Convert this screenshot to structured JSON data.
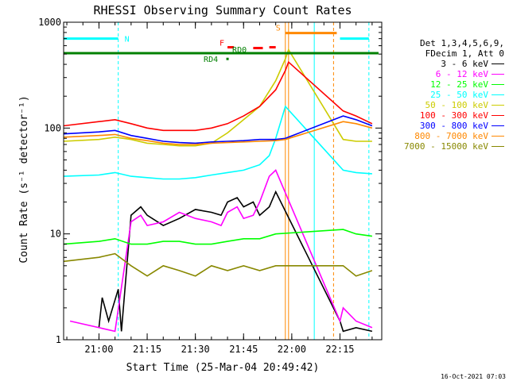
{
  "chart_data": {
    "type": "line",
    "title": "RHESSI Observing Summary Count Rates",
    "xlabel": "Start Time (25-Mar-04 20:49:42)",
    "ylabel": "Count Rate (s⁻¹ detector⁻¹)",
    "yscale": "log",
    "xlim": [
      "20:49",
      "22:28"
    ],
    "ylim": [
      1,
      1000
    ],
    "x_ticks": [
      "21:00",
      "21:15",
      "21:30",
      "21:45",
      "22:00",
      "22:15"
    ],
    "y_ticks": [
      "1",
      "10",
      "100",
      "1000"
    ],
    "legend_header": [
      "Det 1,3,4,5,6,9,",
      "FDecim 1, Att 0"
    ],
    "series": [
      {
        "name": "3 - 6 keV",
        "color": "#000000",
        "x": [
          "21:00",
          "21:01",
          "21:03",
          "21:06",
          "21:07",
          "21:10",
          "21:13",
          "21:15",
          "21:20",
          "21:25",
          "21:30",
          "21:35",
          "21:38",
          "21:40",
          "21:43",
          "21:45",
          "21:48",
          "21:50",
          "21:53",
          "21:55",
          "22:15",
          "22:16",
          "22:20",
          "22:25"
        ],
        "y": [
          1.3,
          2.5,
          1.5,
          3,
          1.2,
          15,
          18,
          15,
          12,
          14,
          17,
          16,
          15,
          20,
          22,
          18,
          20,
          15,
          18,
          25,
          1.5,
          1.2,
          1.3,
          1.2
        ]
      },
      {
        "name": "6 - 12 keV",
        "color": "#ff00ff",
        "x": [
          "20:51",
          "21:05",
          "21:10",
          "21:13",
          "21:15",
          "21:20",
          "21:25",
          "21:30",
          "21:35",
          "21:38",
          "21:40",
          "21:43",
          "21:45",
          "21:48",
          "21:50",
          "21:53",
          "21:55",
          "22:15",
          "22:16",
          "22:20",
          "22:25"
        ],
        "y": [
          1.5,
          1.2,
          13,
          15,
          12,
          13,
          16,
          14,
          13,
          12,
          16,
          18,
          14,
          15,
          20,
          35,
          40,
          1.5,
          2,
          1.5,
          1.3
        ]
      },
      {
        "name": "12 - 25 keV",
        "color": "#00ff00",
        "x": [
          "20:49",
          "21:00",
          "21:05",
          "21:10",
          "21:15",
          "21:20",
          "21:25",
          "21:30",
          "21:35",
          "21:40",
          "21:45",
          "21:50",
          "21:55",
          "22:16",
          "22:20",
          "22:25"
        ],
        "y": [
          8,
          8.5,
          9,
          8,
          8,
          8.5,
          8.5,
          8,
          8,
          8.5,
          9,
          9,
          10,
          11,
          10,
          9.5
        ]
      },
      {
        "name": "25 - 50 keV",
        "color": "#00ffff",
        "x": [
          "20:49",
          "21:00",
          "21:05",
          "21:10",
          "21:15",
          "21:20",
          "21:25",
          "21:30",
          "21:35",
          "21:40",
          "21:45",
          "21:50",
          "21:53",
          "21:55",
          "21:58",
          "22:16",
          "22:20",
          "22:25"
        ],
        "y": [
          35,
          36,
          38,
          35,
          34,
          33,
          33,
          34,
          36,
          38,
          40,
          45,
          55,
          80,
          160,
          40,
          38,
          37
        ]
      },
      {
        "name": "50 - 100 keV",
        "color": "#cccc00",
        "x": [
          "20:49",
          "21:00",
          "21:05",
          "21:10",
          "21:15",
          "21:20",
          "21:25",
          "21:30",
          "21:35",
          "21:40",
          "21:45",
          "21:50",
          "21:55",
          "21:58",
          "21:59",
          "22:16",
          "22:20",
          "22:25"
        ],
        "y": [
          75,
          78,
          82,
          78,
          72,
          70,
          68,
          68,
          72,
          90,
          120,
          160,
          280,
          450,
          550,
          78,
          75,
          75
        ]
      },
      {
        "name": "100 - 300 keV",
        "color": "#ff0000",
        "x": [
          "20:49",
          "21:00",
          "21:05",
          "21:10",
          "21:15",
          "21:20",
          "21:25",
          "21:30",
          "21:35",
          "21:40",
          "21:45",
          "21:50",
          "21:55",
          "21:58",
          "21:59",
          "22:16",
          "22:20",
          "22:25"
        ],
        "y": [
          105,
          115,
          120,
          110,
          100,
          95,
          95,
          95,
          100,
          110,
          130,
          160,
          230,
          350,
          420,
          145,
          130,
          110
        ]
      },
      {
        "name": "300 - 800 keV",
        "color": "#0000ff",
        "x": [
          "20:49",
          "21:00",
          "21:05",
          "21:10",
          "21:15",
          "21:20",
          "21:25",
          "21:30",
          "21:35",
          "21:40",
          "21:45",
          "21:50",
          "21:55",
          "21:58",
          "22:16",
          "22:20",
          "22:25"
        ],
        "y": [
          88,
          92,
          95,
          85,
          80,
          75,
          73,
          72,
          74,
          75,
          76,
          78,
          78,
          80,
          130,
          120,
          105
        ]
      },
      {
        "name": "800 - 7000 keV",
        "color": "#ff8800",
        "x": [
          "20:49",
          "21:00",
          "21:05",
          "21:10",
          "21:15",
          "21:20",
          "21:25",
          "21:30",
          "21:35",
          "21:40",
          "21:45",
          "21:50",
          "21:55",
          "21:58",
          "22:16",
          "22:20",
          "22:25"
        ],
        "y": [
          82,
          85,
          87,
          80,
          76,
          72,
          70,
          70,
          72,
          73,
          74,
          75,
          76,
          78,
          115,
          110,
          100
        ]
      },
      {
        "name": "7000 - 15000 keV",
        "color": "#888800",
        "x": [
          "20:49",
          "21:00",
          "21:05",
          "21:10",
          "21:15",
          "21:20",
          "21:25",
          "21:30",
          "21:35",
          "21:40",
          "21:45",
          "21:50",
          "21:55",
          "22:16",
          "22:20",
          "22:25"
        ],
        "y": [
          5.5,
          6,
          6.5,
          5,
          4,
          5,
          4.5,
          4,
          5,
          4.5,
          5,
          4.5,
          5,
          5,
          4,
          4.5
        ]
      }
    ],
    "flag_labels": [
      "N",
      "S",
      "F",
      "RD0",
      "RD4"
    ],
    "flag_bars": [
      {
        "label": "N",
        "color": "#00ffff",
        "x0": "20:49",
        "x1": "21:06",
        "y": 700
      },
      {
        "label": "N",
        "color": "#00ffff",
        "x0": "22:15",
        "x1": "22:24",
        "y": 700
      },
      {
        "label": "S",
        "color": "#ff8800",
        "x0": "21:58",
        "x1": "22:14",
        "y": 790
      },
      {
        "label": "F",
        "color": "#ff0000",
        "x0": "21:40",
        "x1": "21:42",
        "y": 580
      },
      {
        "label": "F",
        "color": "#ff0000",
        "x0": "21:48",
        "x1": "21:51",
        "y": 570
      },
      {
        "label": "F",
        "color": "#ff0000",
        "x0": "21:53",
        "x1": "21:55",
        "y": 580
      },
      {
        "label": "RD0",
        "color": "#008000",
        "x0": "20:49",
        "x1": "22:27",
        "y": 510
      },
      {
        "label": "RD4",
        "color": "#008000",
        "x0": "21:40",
        "x1": "21:40",
        "y": 450
      }
    ],
    "vertical_markers": [
      {
        "x": "21:06",
        "color": "#00ffff",
        "style": "dashed"
      },
      {
        "x": "21:58",
        "color": "#ff8800",
        "style": "solid"
      },
      {
        "x": "21:59",
        "color": "#ff8800",
        "style": "solid"
      },
      {
        "x": "22:07",
        "color": "#00ffff",
        "style": "solid"
      },
      {
        "x": "22:13",
        "color": "#ff8800",
        "style": "dashed"
      },
      {
        "x": "22:24",
        "color": "#00ffff",
        "style": "dashed"
      }
    ],
    "timestamp": "16-Oct-2021 07:03",
    "legend_position": "right",
    "grid": false
  }
}
